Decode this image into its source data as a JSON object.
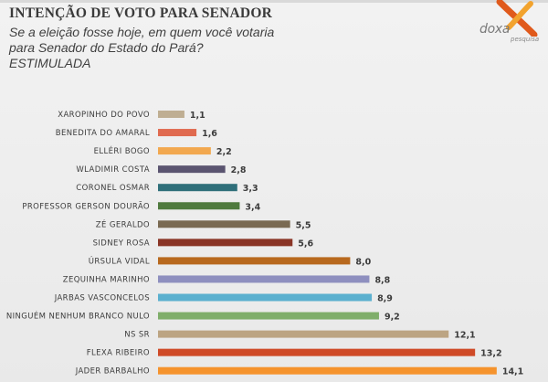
{
  "header": {
    "title": "INTENÇÃO DE VOTO PARA SENADOR",
    "subtitle": "Se a eleição fosse hoje, em quem você votaria para Senador do Estado do Pará? ESTIMULADA"
  },
  "logo": {
    "name": "doxa",
    "tagline": "pesquisa",
    "colors": [
      "#e05a1c",
      "#f2a32e"
    ]
  },
  "chart_data": {
    "type": "bar",
    "orientation": "horizontal",
    "title": "",
    "xlabel": "",
    "ylabel": "",
    "grid": false,
    "legend": "none",
    "xlim": [
      0,
      15
    ],
    "categories": [
      "XAROPINHO DO POVO",
      "BENEDITA DO AMARAL",
      "ELLÉRI BOGO",
      "WLADIMIR COSTA",
      "CORONEL OSMAR",
      "PROFESSOR GERSON DOURÃO",
      "ZÉ GERALDO",
      "SIDNEY ROSA",
      "ÚRSULA VIDAL",
      "ZEQUINHA MARINHO",
      "JARBAS VASCONCELOS",
      "NINGUÉM NENHUM BRANCO NULO",
      "NS SR",
      "FLEXA RIBEIRO",
      "JADER BARBALHO"
    ],
    "values": [
      1.1,
      1.6,
      2.2,
      2.8,
      3.3,
      3.4,
      5.5,
      5.6,
      8.0,
      8.8,
      8.9,
      9.2,
      12.1,
      13.2,
      14.1
    ],
    "value_labels": [
      "1,1",
      "1,6",
      "2,2",
      "2,8",
      "3,3",
      "3,4",
      "5,5",
      "5,6",
      "8,0",
      "8,8",
      "8,9",
      "9,2",
      "12,1",
      "13,2",
      "14,1"
    ],
    "colors": [
      "#bfae92",
      "#e06a4f",
      "#f2a84f",
      "#5a5470",
      "#2f6f7a",
      "#4f7a3e",
      "#7a6a52",
      "#8a3526",
      "#b8691e",
      "#8e8fbf",
      "#5bb0cf",
      "#7fae6a",
      "#bca482",
      "#cf4a27",
      "#f5932d"
    ]
  }
}
